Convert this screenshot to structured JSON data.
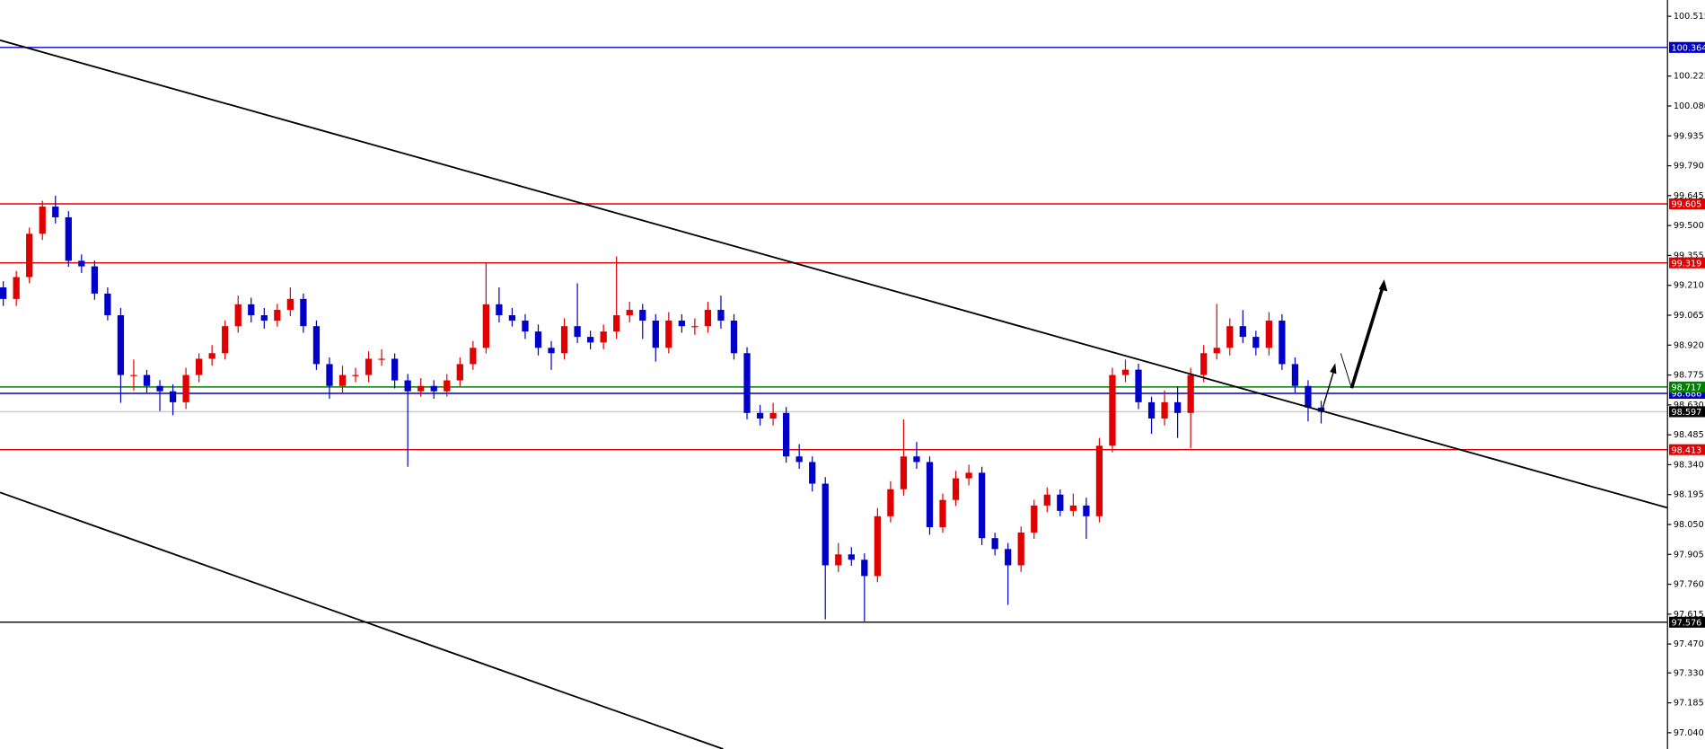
{
  "chart_data": {
    "type": "candlestick",
    "ylim": [
      96.961,
      100.594
    ],
    "yticks": [
      100.515,
      {
        "value": 100.225,
        "label": "100.225"
      },
      {
        "value": 100.08,
        "label": "100.080"
      },
      99.935,
      {
        "value": 99.79,
        "label": "99.790"
      },
      99.645,
      {
        "value": 99.5,
        "label": "99.500"
      },
      99.355,
      {
        "value": 99.21,
        "label": "99.210"
      },
      99.065,
      {
        "value": 98.92,
        "label": "98.920"
      },
      98.775,
      {
        "value": 98.63,
        "label": "98.630"
      },
      98.485,
      {
        "value": 98.34,
        "label": "98.340"
      },
      98.195,
      {
        "value": 98.05,
        "label": "98.050"
      },
      97.905,
      {
        "value": 97.76,
        "label": "97.760"
      },
      97.615,
      {
        "value": 97.47,
        "label": "97.470"
      },
      {
        "value": 97.33,
        "label": "97.330"
      },
      97.185,
      {
        "value": 97.04,
        "label": "97.040"
      }
    ],
    "up_color": "#e00000",
    "down_color": "#0000c8",
    "open": [
      99.2,
      99.144,
      99.25,
      99.46,
      99.592,
      99.54,
      99.329,
      99.302,
      99.17,
      99.065,
      98.775,
      98.775,
      98.722,
      98.696,
      98.643,
      98.775,
      98.854,
      98.881,
      99.012,
      99.118,
      99.065,
      99.039,
      99.091,
      99.144,
      99.012,
      98.828,
      98.722,
      98.775,
      98.775,
      98.854,
      98.854,
      98.749,
      98.696,
      98.722,
      98.696,
      98.749,
      98.828,
      98.907,
      99.118,
      99.065,
      99.039,
      98.986,
      98.907,
      98.881,
      99.012,
      98.96,
      98.933,
      98.986,
      99.065,
      99.091,
      99.039,
      98.907,
      99.039,
      99.012,
      99.012,
      99.091,
      99.039,
      98.881,
      98.591,
      98.564,
      98.591,
      98.38,
      98.353,
      98.248,
      97.852,
      97.905,
      97.879,
      97.8,
      98.09,
      98.221,
      98.38,
      98.353,
      98.037,
      98.169,
      98.274,
      98.301,
      97.984,
      97.931,
      97.852,
      98.011,
      98.142,
      98.195,
      98.116,
      98.142,
      98.09,
      98.432,
      98.775,
      98.801,
      98.643,
      98.564,
      98.643,
      98.591,
      98.775,
      98.881,
      98.907,
      99.012,
      98.96,
      98.907,
      99.039,
      98.828,
      98.722,
      98.617
    ],
    "high": [
      99.23,
      99.28,
      99.49,
      99.62,
      99.645,
      99.57,
      99.36,
      99.33,
      99.2,
      99.1,
      98.85,
      98.8,
      98.75,
      98.73,
      98.81,
      98.88,
      98.92,
      99.04,
      99.16,
      99.15,
      99.1,
      99.12,
      99.2,
      99.17,
      99.04,
      98.86,
      98.82,
      98.81,
      98.89,
      98.9,
      98.88,
      98.78,
      98.76,
      98.75,
      98.78,
      98.86,
      98.94,
      99.32,
      99.2,
      99.1,
      99.07,
      99.02,
      98.94,
      99.05,
      99.22,
      98.99,
      99.02,
      99.35,
      99.13,
      99.12,
      99.07,
      99.08,
      99.07,
      99.05,
      99.13,
      99.16,
      99.07,
      98.91,
      98.63,
      98.64,
      98.62,
      98.44,
      98.38,
      98.28,
      97.96,
      97.94,
      97.91,
      98.13,
      98.26,
      98.56,
      98.45,
      98.38,
      98.2,
      98.31,
      98.34,
      98.33,
      98.01,
      97.96,
      98.04,
      98.17,
      98.23,
      98.22,
      98.2,
      98.18,
      98.47,
      98.81,
      98.85,
      98.83,
      98.67,
      98.7,
      98.72,
      98.81,
      98.92,
      99.12,
      99.05,
      99.09,
      98.99,
      99.08,
      99.07,
      98.86,
      98.75,
      98.65
    ],
    "low": [
      99.11,
      99.11,
      99.22,
      99.43,
      99.51,
      99.3,
      99.27,
      99.14,
      99.04,
      98.64,
      98.7,
      98.69,
      98.6,
      98.58,
      98.61,
      98.74,
      98.82,
      98.85,
      98.98,
      99.03,
      99.0,
      99.01,
      99.06,
      98.98,
      98.8,
      98.66,
      98.69,
      98.74,
      98.74,
      98.82,
      98.71,
      98.33,
      98.67,
      98.66,
      98.67,
      98.72,
      98.8,
      98.88,
      99.03,
      99.01,
      98.95,
      98.87,
      98.8,
      98.85,
      98.93,
      98.9,
      98.9,
      98.95,
      99.03,
      98.95,
      98.84,
      98.88,
      98.98,
      98.97,
      98.98,
      99.0,
      98.85,
      98.56,
      98.53,
      98.53,
      98.35,
      98.32,
      98.21,
      97.59,
      97.82,
      97.85,
      97.58,
      97.77,
      98.06,
      98.19,
      98.32,
      98.0,
      98.01,
      98.14,
      98.24,
      97.95,
      97.9,
      97.66,
      97.82,
      97.98,
      98.11,
      98.09,
      98.09,
      97.98,
      98.06,
      98.4,
      98.74,
      98.61,
      98.49,
      98.53,
      98.47,
      98.42,
      98.74,
      98.85,
      98.87,
      98.93,
      98.87,
      98.87,
      98.8,
      98.69,
      98.55,
      98.54
    ],
    "close": [
      99.144,
      99.25,
      99.46,
      99.592,
      99.54,
      99.329,
      99.302,
      99.17,
      99.065,
      98.775,
      98.775,
      98.722,
      98.696,
      98.643,
      98.775,
      98.854,
      98.881,
      99.012,
      99.118,
      99.065,
      99.039,
      99.091,
      99.144,
      99.012,
      98.828,
      98.722,
      98.775,
      98.775,
      98.854,
      98.854,
      98.749,
      98.696,
      98.722,
      98.696,
      98.749,
      98.828,
      98.907,
      99.118,
      99.065,
      99.039,
      98.986,
      98.907,
      98.881,
      99.012,
      98.96,
      98.933,
      98.986,
      99.065,
      99.091,
      99.039,
      98.907,
      99.039,
      99.012,
      99.012,
      99.091,
      99.039,
      98.881,
      98.591,
      98.564,
      98.591,
      98.38,
      98.353,
      98.248,
      97.852,
      97.905,
      97.879,
      97.8,
      98.09,
      98.221,
      98.38,
      98.353,
      98.037,
      98.169,
      98.274,
      98.301,
      97.984,
      97.931,
      97.852,
      98.011,
      98.142,
      98.195,
      98.116,
      98.142,
      98.09,
      98.432,
      98.775,
      98.801,
      98.643,
      98.564,
      98.643,
      98.591,
      98.775,
      98.881,
      98.907,
      99.012,
      98.96,
      98.907,
      99.039,
      98.828,
      98.722,
      98.617,
      98.597
    ],
    "levels": [
      {
        "value": 100.364,
        "color": "#0000c8"
      },
      {
        "value": 99.605,
        "color": "#e00000"
      },
      {
        "value": 99.319,
        "color": "#e00000"
      },
      {
        "value": 98.686,
        "color": "#0000c8"
      },
      {
        "value": 98.717,
        "color": "#008000"
      },
      {
        "value": 98.597,
        "color": "#000000",
        "line_color": "#c8c8c8"
      },
      {
        "value": 98.413,
        "color": "#e00000"
      },
      {
        "value": 97.576,
        "color": "#000000"
      }
    ]
  }
}
